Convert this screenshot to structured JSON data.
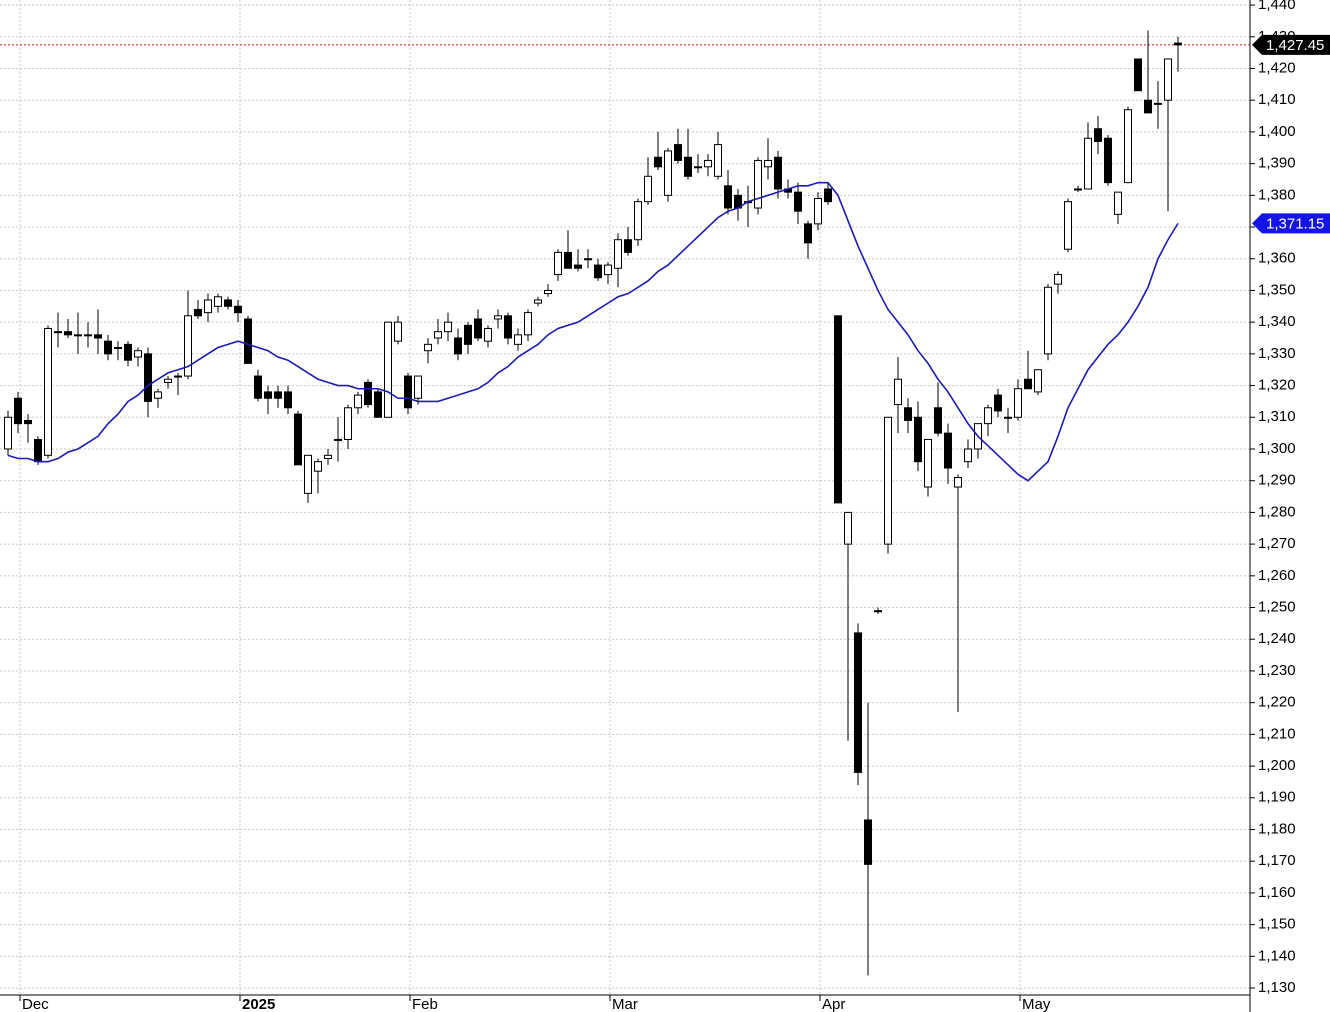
{
  "chart_data": {
    "type": "candlestick",
    "categories": [
      null,
      "Dec",
      null,
      null,
      null,
      null,
      null,
      null,
      null,
      null,
      null,
      null,
      null,
      null,
      null,
      null,
      null,
      null,
      null,
      null,
      null,
      null,
      null,
      "2025",
      null,
      null,
      null,
      null,
      null,
      null,
      null,
      null,
      null,
      null,
      null,
      null,
      null,
      null,
      null,
      null,
      "Feb",
      null,
      null,
      null,
      null,
      null,
      null,
      null,
      null,
      null,
      null,
      null,
      null,
      null,
      null,
      null,
      null,
      null,
      null,
      null,
      "Mar",
      null,
      null,
      null,
      null,
      null,
      null,
      null,
      null,
      null,
      null,
      null,
      null,
      null,
      null,
      null,
      null,
      null,
      null,
      null,
      null,
      "Apr",
      null,
      null,
      null,
      null,
      null,
      null,
      null,
      null,
      null,
      null,
      null,
      null,
      null,
      null,
      null,
      null,
      null,
      null,
      null,
      "May",
      null,
      null,
      null,
      null,
      null,
      null,
      null,
      null,
      null,
      null,
      null,
      null,
      null,
      null,
      null,
      null
    ],
    "open": [
      1300,
      1316,
      1309,
      1303,
      1298,
      1337,
      1337,
      1336,
      1336,
      1336,
      1334,
      1332,
      1333,
      1329,
      1330,
      1316,
      1321,
      1323,
      1323,
      1344,
      1343,
      1345,
      1347,
      1345,
      1341,
      1323,
      1318,
      1318,
      1318,
      1311,
      1286,
      1293,
      1297,
      1303,
      1303,
      1313,
      1321,
      1318,
      1310,
      1334,
      1323,
      1316,
      1331,
      1335,
      1337,
      1335,
      1339,
      1341,
      1334,
      1341,
      1342,
      1333,
      1336,
      1346,
      1349,
      1355,
      1362,
      1358,
      1360,
      1358,
      1355,
      1357,
      1366,
      1366,
      1378,
      1392,
      1380,
      1396,
      1392,
      1389,
      1389,
      1386,
      1383,
      1380,
      1378,
      1376,
      1389,
      1392,
      1382,
      1381,
      1371,
      1371,
      1382,
      1342,
      1270,
      1242,
      1183,
      1249,
      1270,
      1314,
      1313,
      1310,
      1288,
      1313,
      1305,
      1288,
      1296,
      1300,
      1308,
      1317,
      1310,
      1310,
      1322,
      1318,
      1330,
      1352,
      1363,
      1382,
      1382,
      1401,
      1398,
      1374,
      1384,
      1423,
      1410,
      1409,
      1410,
      1428
    ],
    "high": [
      1312,
      1318,
      1311,
      1304,
      1339,
      1343,
      1341,
      1343,
      1340,
      1344,
      1336,
      1334,
      1334,
      1332,
      1332,
      1319,
      1323,
      1324,
      1350,
      1347,
      1349,
      1349,
      1348,
      1347,
      1342,
      1325,
      1320,
      1320,
      1320,
      1312,
      1298,
      1297,
      1300,
      1310,
      1314,
      1318,
      1322,
      1319,
      1340,
      1342,
      1324,
      1323,
      1335,
      1341,
      1343,
      1338,
      1340,
      1344,
      1339,
      1344,
      1343,
      1338,
      1344,
      1348,
      1352,
      1363,
      1369,
      1363,
      1363,
      1360,
      1359,
      1368,
      1370,
      1379,
      1392,
      1400,
      1395,
      1401,
      1401,
      1393,
      1393,
      1400,
      1388,
      1382,
      1383,
      1392,
      1398,
      1394,
      1385,
      1384,
      1372,
      1381,
      1384,
      1342,
      1280,
      1245,
      1220,
      1250,
      1310,
      1329,
      1316,
      1315,
      1303,
      1321,
      1308,
      1292,
      1303,
      1308,
      1314,
      1319,
      1313,
      1322,
      1331,
      1325,
      1352,
      1356,
      1379,
      1383,
      1403,
      1405,
      1399,
      1381,
      1408,
      1423,
      1432,
      1416,
      1423,
      1430
    ],
    "low": [
      1298,
      1305,
      1302,
      1295,
      1297,
      1332,
      1335,
      1330,
      1332,
      1330,
      1328,
      1328,
      1326,
      1326,
      1310,
      1313,
      1319,
      1317,
      1322,
      1341,
      1340,
      1343,
      1344,
      1340,
      1327,
      1315,
      1311,
      1313,
      1311,
      1295,
      1283,
      1286,
      1295,
      1296,
      1300,
      1311,
      1313,
      1310,
      1310,
      1333,
      1311,
      1314,
      1327,
      1333,
      1334,
      1328,
      1330,
      1334,
      1332,
      1338,
      1333,
      1331,
      1334,
      1345,
      1348,
      1353,
      1357,
      1356,
      1357,
      1353,
      1352,
      1351,
      1361,
      1364,
      1377,
      1388,
      1378,
      1390,
      1385,
      1387,
      1386,
      1385,
      1374,
      1372,
      1370,
      1374,
      1385,
      1379,
      1379,
      1371,
      1360,
      1369,
      1377,
      1283,
      1208,
      1194,
      1134,
      1248,
      1267,
      1305,
      1305,
      1293,
      1285,
      1304,
      1289,
      1217,
      1294,
      1297,
      1304,
      1310,
      1305,
      1309,
      1319,
      1317,
      1328,
      1349,
      1362,
      1381,
      1382,
      1393,
      1383,
      1371,
      1384,
      1413,
      1406,
      1401,
      1375,
      1419
    ],
    "close": [
      1310,
      1308,
      1308,
      1296,
      1338,
      1337,
      1336,
      1336,
      1336,
      1335,
      1330,
      1332,
      1328,
      1331,
      1315,
      1318,
      1322,
      1323,
      1342,
      1342,
      1347,
      1348,
      1345,
      1343,
      1327,
      1316,
      1316,
      1316,
      1313,
      1295,
      1298,
      1296,
      1298,
      1303,
      1313,
      1317,
      1314,
      1310,
      1340,
      1340,
      1313,
      1323,
      1333,
      1337,
      1340,
      1330,
      1333,
      1335,
      1338,
      1342,
      1335,
      1336,
      1343,
      1347,
      1350,
      1362,
      1357,
      1357,
      1360,
      1354,
      1358,
      1366,
      1362,
      1378,
      1386,
      1389,
      1394,
      1391,
      1386,
      1389,
      1391,
      1396,
      1376,
      1376,
      1378,
      1391,
      1391,
      1382,
      1381,
      1375,
      1365,
      1379,
      1378,
      1283,
      1280,
      1198,
      1169,
      1249,
      1310,
      1322,
      1309,
      1296,
      1303,
      1305,
      1294,
      1291,
      1300,
      1308,
      1313,
      1312,
      1310,
      1319,
      1319,
      1325,
      1351,
      1355,
      1378,
      1382,
      1398,
      1397,
      1384,
      1381,
      1407,
      1413,
      1406,
      1409,
      1423,
      1427.45
    ],
    "up_color": "#ffffff",
    "down_color": "#000000",
    "ma": {
      "color": "#1c1cb4",
      "values": [
        1298,
        1297,
        1297,
        1296,
        1296,
        1297,
        1299,
        1300,
        1302,
        1304,
        1308,
        1311,
        1315,
        1317,
        1320,
        1322,
        1324,
        1325,
        1326,
        1328,
        1330,
        1332,
        1333,
        1334,
        1333,
        1332,
        1331,
        1329,
        1328,
        1326,
        1324,
        1322,
        1321,
        1320,
        1320,
        1319,
        1319,
        1319,
        1318,
        1316,
        1316,
        1315,
        1315,
        1315,
        1316,
        1317,
        1318,
        1319,
        1321,
        1324,
        1326,
        1329,
        1331,
        1333,
        1336,
        1338,
        1339,
        1340,
        1342,
        1344,
        1346,
        1348,
        1349,
        1351,
        1353,
        1356,
        1358,
        1361,
        1364,
        1367,
        1370,
        1373,
        1375,
        1376,
        1378,
        1379,
        1380,
        1381,
        1382,
        1383,
        1383,
        1384,
        1384,
        1380,
        1372,
        1364,
        1357,
        1350,
        1344,
        1340,
        1336,
        1331,
        1327,
        1322,
        1318,
        1313,
        1308,
        1304,
        1301,
        1298,
        1295,
        1292,
        1290,
        1293,
        1296,
        1304,
        1313,
        1319,
        1325,
        1329,
        1333,
        1336,
        1340,
        1345,
        1351,
        1360,
        1366,
        1371.15
      ]
    },
    "last_price": {
      "value": 1427.45,
      "label": "1,427.45",
      "color": "#000000",
      "line_color": "#b22222"
    },
    "ma_label": {
      "value": 1371.15,
      "label": "1,371.15",
      "color": "#1414e6"
    },
    "ylim": [
      1127.8,
      1441.6
    ],
    "yticks": [
      {
        "value": 1130,
        "label": "1,130"
      },
      {
        "value": 1140,
        "label": "1,140"
      },
      {
        "value": 1150,
        "label": "1,150"
      },
      {
        "value": 1160,
        "label": "1,160"
      },
      {
        "value": 1170,
        "label": "1,170"
      },
      {
        "value": 1180,
        "label": "1,180"
      },
      {
        "value": 1190,
        "label": "1,190"
      },
      {
        "value": 1200,
        "label": "1,200"
      },
      {
        "value": 1210,
        "label": "1,210"
      },
      {
        "value": 1220,
        "label": "1,220"
      },
      {
        "value": 1230,
        "label": "1,230"
      },
      {
        "value": 1240,
        "label": "1,240"
      },
      {
        "value": 1250,
        "label": "1,250"
      },
      {
        "value": 1260,
        "label": "1,260"
      },
      {
        "value": 1270,
        "label": "1,270"
      },
      {
        "value": 1280,
        "label": "1,280"
      },
      {
        "value": 1290,
        "label": "1,290"
      },
      {
        "value": 1300,
        "label": "1,300"
      },
      {
        "value": 1310,
        "label": "1,310"
      },
      {
        "value": 1320,
        "label": "1,320"
      },
      {
        "value": 1330,
        "label": "1,330"
      },
      {
        "value": 1340,
        "label": "1,340"
      },
      {
        "value": 1350,
        "label": "1,350"
      },
      {
        "value": 1360,
        "label": "1,360"
      },
      {
        "value": 1370,
        "label": "1,370"
      },
      {
        "value": 1380,
        "label": "1,380"
      },
      {
        "value": 1390,
        "label": "1,390"
      },
      {
        "value": 1400,
        "label": "1,400"
      },
      {
        "value": 1410,
        "label": "1,410"
      },
      {
        "value": 1420,
        "label": "1,420"
      },
      {
        "value": 1430,
        "label": "1,430"
      },
      {
        "value": 1440,
        "label": "1,440"
      }
    ],
    "grid": true
  }
}
